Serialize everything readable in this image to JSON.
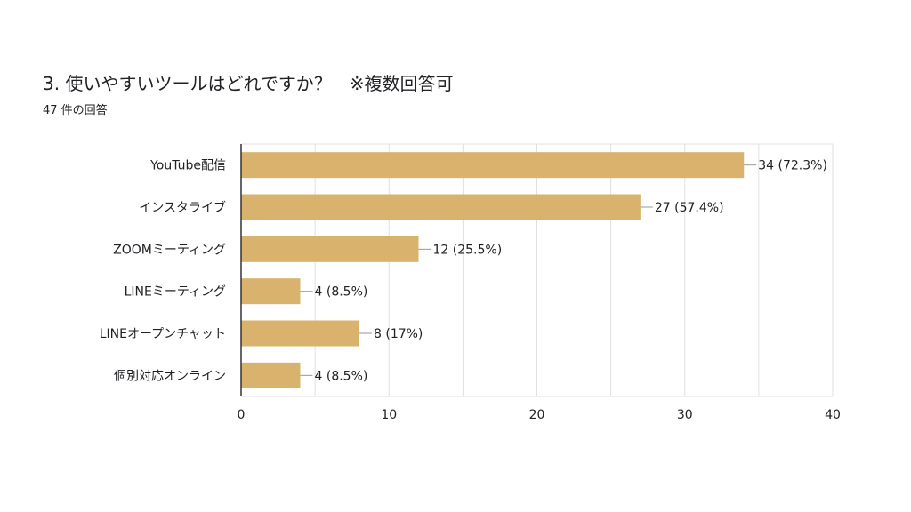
{
  "question": {
    "title": "3. 使いやすいツールはどれですか？　※複数回答可",
    "response_count": "47 件の回答"
  },
  "colors": {
    "bar": "#d9b36e",
    "grid": "#e0e0e0",
    "axis": "#333333",
    "text": "#202124",
    "connector": "#999999"
  },
  "chart_data": {
    "type": "bar",
    "orientation": "horizontal",
    "categories": [
      "YouTube配信",
      "インスタライブ",
      "ZOOMミーティング",
      "LINEミーティング",
      "LINEオープンチャット",
      "個別対応オンライン"
    ],
    "values": [
      34,
      27,
      12,
      4,
      8,
      4
    ],
    "value_labels": [
      "34 (72.3%)",
      "27 (57.4%)",
      "12 (25.5%)",
      "4 (8.5%)",
      "8 (17%)",
      "4 (8.5%)"
    ],
    "xlim": [
      0,
      40
    ],
    "xticks": [
      0,
      10,
      20,
      30,
      40
    ],
    "minor_grid_step": 5,
    "grid": true,
    "legend": "none"
  }
}
